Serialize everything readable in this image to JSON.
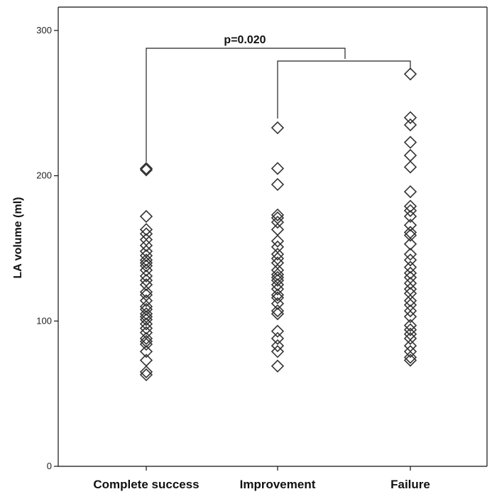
{
  "chart_data": {
    "type": "scatter",
    "title": "",
    "xlabel": "",
    "ylabel": "LA volume (ml)",
    "ylim": [
      0,
      300
    ],
    "yticks": [
      "0",
      "100",
      "200",
      "300"
    ],
    "categories": [
      "Complete success",
      "Improvement",
      "Failure"
    ],
    "marker": "diamond",
    "grid": false,
    "series": [
      {
        "values": [
          63,
          65,
          73,
          79,
          84,
          86,
          88,
          92,
          95,
          98,
          101,
          103,
          105,
          108,
          110,
          114,
          118,
          120,
          125,
          128,
          131,
          135,
          138,
          140,
          142,
          145,
          148,
          152,
          156,
          160,
          163,
          172,
          204,
          205
        ]
      },
      {
        "values": [
          69,
          79,
          83,
          88,
          93,
          105,
          107,
          112,
          116,
          118,
          122,
          125,
          128,
          130,
          132,
          135,
          140,
          143,
          146,
          151,
          155,
          163,
          168,
          171,
          173,
          194,
          205,
          233
        ]
      },
      {
        "values": [
          73,
          75,
          79,
          83,
          88,
          91,
          94,
          97,
          103,
          107,
          111,
          114,
          119,
          122,
          126,
          130,
          133,
          137,
          142,
          146,
          153,
          159,
          161,
          166,
          172,
          176,
          179,
          189,
          206,
          214,
          223,
          235,
          240,
          270
        ]
      }
    ],
    "annotation": {
      "text": "p=0.020"
    }
  }
}
